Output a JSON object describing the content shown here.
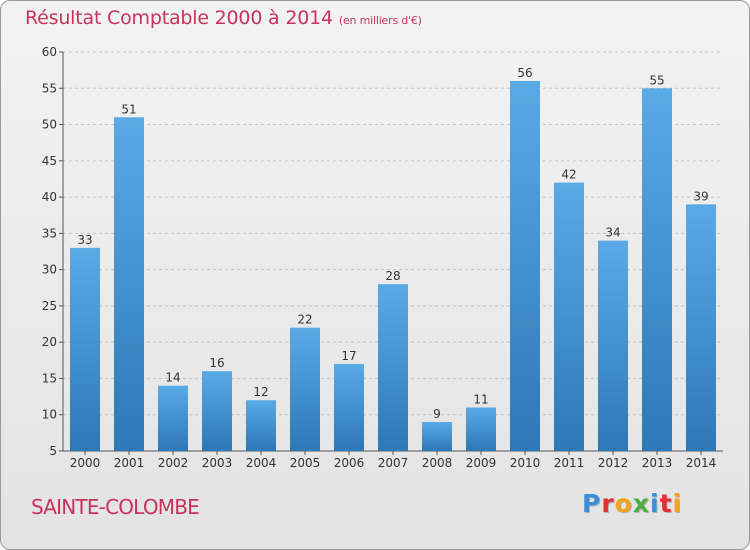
{
  "title": "Résultat Comptable 2000 à 2014",
  "title_unit": "(en milliers d'€)",
  "place": "SAINTE-COLOMBE",
  "logo": {
    "text": "Proxiti",
    "letters": [
      {
        "ch": "P",
        "color": "#3b8fd6"
      },
      {
        "ch": "r",
        "color": "#e0312f"
      },
      {
        "ch": "o",
        "color": "#f3a51a"
      },
      {
        "ch": "x",
        "color": "#4ab03e"
      },
      {
        "ch": "i",
        "color": "#3b8fd6"
      },
      {
        "ch": "t",
        "color": "#e0312f"
      },
      {
        "ch": "i",
        "color": "#f3a51a"
      }
    ]
  },
  "colors": {
    "bar_light": "#5aaae6",
    "bar_dark": "#2d78b6",
    "title": "#c8325f"
  },
  "chart_data": {
    "type": "bar",
    "title": "Résultat Comptable 2000 à 2014",
    "ylabel": "en milliers d'€",
    "categories": [
      "2000",
      "2001",
      "2002",
      "2003",
      "2004",
      "2005",
      "2006",
      "2007",
      "2008",
      "2009",
      "2010",
      "2011",
      "2012",
      "2013",
      "2014"
    ],
    "values": [
      33,
      51,
      14,
      16,
      12,
      22,
      17,
      28,
      9,
      11,
      56,
      42,
      34,
      55,
      39
    ],
    "ylim": [
      5,
      60
    ],
    "yticks": [
      5,
      10,
      15,
      20,
      25,
      30,
      35,
      40,
      45,
      50,
      55,
      60
    ],
    "grid": true
  }
}
